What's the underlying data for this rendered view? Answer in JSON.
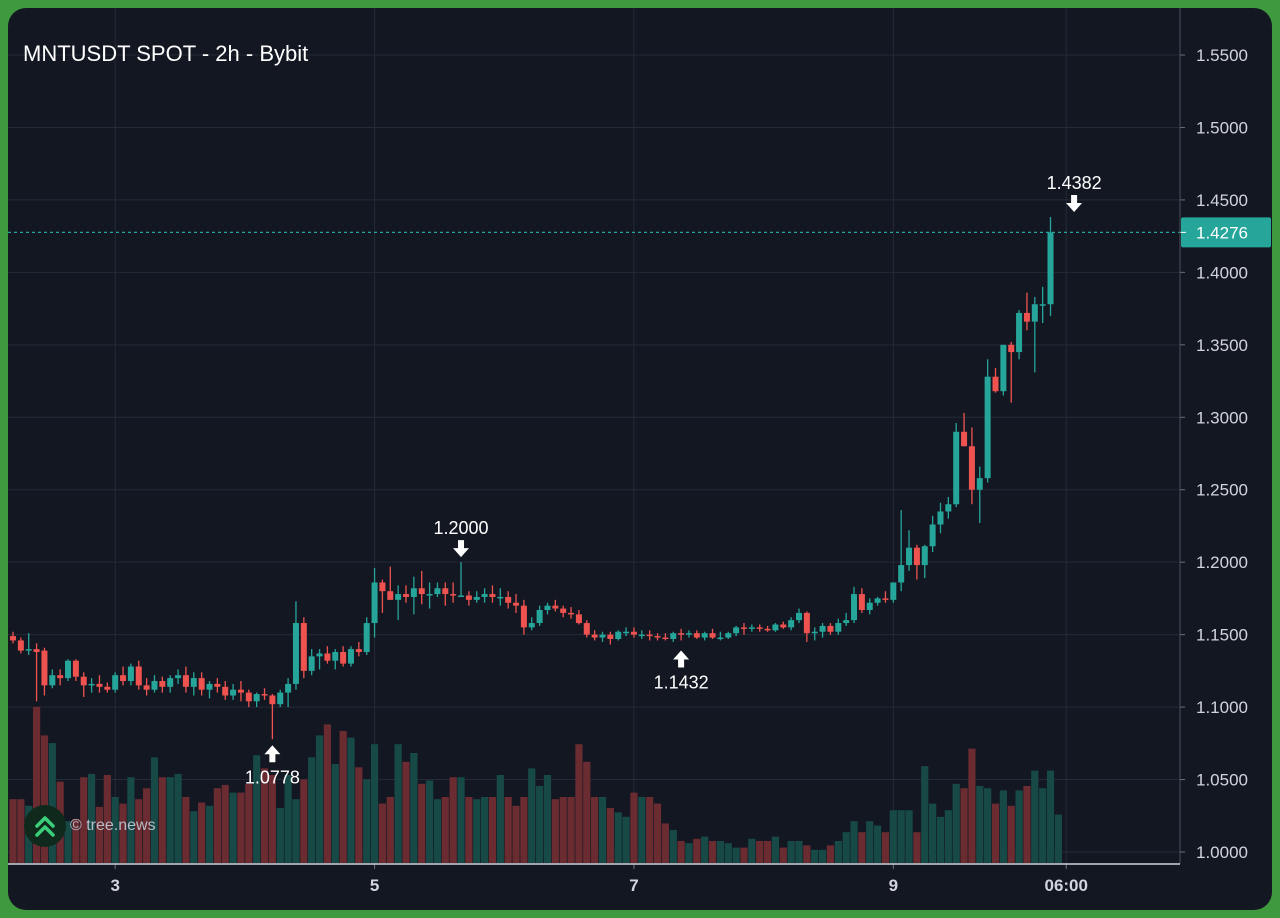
{
  "chart_data": {
    "type": "candlestick",
    "title": "MNTUSDT SPOT - 2h - Bybit",
    "last_price": 1.4276,
    "ylim": [
      0.99,
      1.572
    ],
    "y_ticks": [
      "1.5500",
      "1.5000",
      "1.4500",
      "1.4000",
      "1.3500",
      "1.3000",
      "1.2500",
      "1.2000",
      "1.1500",
      "1.1000",
      "1.0500",
      "1.0000"
    ],
    "x_ticks": [
      "3",
      "5",
      "7",
      "9",
      "06:00"
    ],
    "x_tick_bar_index": [
      13,
      46,
      79,
      112,
      134
    ],
    "annotations": [
      {
        "label": "1.0778",
        "bar": 33,
        "price": 1.0778,
        "type": "low"
      },
      {
        "label": "1.2000",
        "bar": 57,
        "price": 1.2,
        "type": "high"
      },
      {
        "label": "1.1432",
        "bar": 85,
        "price": 1.1432,
        "type": "low"
      },
      {
        "label": "1.4382",
        "bar": 135,
        "price": 1.4382,
        "type": "high"
      }
    ],
    "candles": [
      [
        1.149,
        1.152,
        1.144,
        1.146
      ],
      [
        1.146,
        1.148,
        1.137,
        1.139
      ],
      [
        1.139,
        1.151,
        1.136,
        1.14
      ],
      [
        1.14,
        1.144,
        1.104,
        1.138
      ],
      [
        1.139,
        1.141,
        1.108,
        1.115
      ],
      [
        1.115,
        1.126,
        1.113,
        1.122
      ],
      [
        1.122,
        1.126,
        1.115,
        1.12
      ],
      [
        1.12,
        1.133,
        1.118,
        1.132
      ],
      [
        1.132,
        1.133,
        1.118,
        1.121
      ],
      [
        1.121,
        1.124,
        1.107,
        1.115
      ],
      [
        1.115,
        1.12,
        1.11,
        1.116
      ],
      [
        1.116,
        1.122,
        1.11,
        1.114
      ],
      [
        1.114,
        1.117,
        1.11,
        1.112
      ],
      [
        1.112,
        1.124,
        1.11,
        1.122
      ],
      [
        1.122,
        1.128,
        1.115,
        1.118
      ],
      [
        1.118,
        1.13,
        1.115,
        1.128
      ],
      [
        1.128,
        1.132,
        1.112,
        1.115
      ],
      [
        1.115,
        1.12,
        1.108,
        1.112
      ],
      [
        1.112,
        1.122,
        1.11,
        1.118
      ],
      [
        1.118,
        1.121,
        1.11,
        1.114
      ],
      [
        1.114,
        1.122,
        1.11,
        1.12
      ],
      [
        1.12,
        1.126,
        1.116,
        1.122
      ],
      [
        1.122,
        1.128,
        1.11,
        1.114
      ],
      [
        1.114,
        1.124,
        1.108,
        1.12
      ],
      [
        1.12,
        1.124,
        1.108,
        1.112
      ],
      [
        1.112,
        1.118,
        1.106,
        1.116
      ],
      [
        1.116,
        1.12,
        1.11,
        1.114
      ],
      [
        1.114,
        1.118,
        1.105,
        1.108
      ],
      [
        1.108,
        1.116,
        1.105,
        1.112
      ],
      [
        1.112,
        1.118,
        1.104,
        1.11
      ],
      [
        1.11,
        1.112,
        1.1,
        1.104
      ],
      [
        1.104,
        1.11,
        1.1,
        1.109
      ],
      [
        1.109,
        1.113,
        1.105,
        1.108
      ],
      [
        1.108,
        1.109,
        1.0778,
        1.102
      ],
      [
        1.102,
        1.112,
        1.1,
        1.11
      ],
      [
        1.11,
        1.12,
        1.1,
        1.116
      ],
      [
        1.116,
        1.173,
        1.112,
        1.158
      ],
      [
        1.158,
        1.162,
        1.12,
        1.125
      ],
      [
        1.125,
        1.14,
        1.122,
        1.135
      ],
      [
        1.135,
        1.14,
        1.126,
        1.137
      ],
      [
        1.137,
        1.142,
        1.13,
        1.132
      ],
      [
        1.132,
        1.14,
        1.126,
        1.138
      ],
      [
        1.138,
        1.142,
        1.128,
        1.13
      ],
      [
        1.13,
        1.142,
        1.128,
        1.14
      ],
      [
        1.14,
        1.145,
        1.135,
        1.138
      ],
      [
        1.138,
        1.162,
        1.136,
        1.158
      ],
      [
        1.158,
        1.196,
        1.148,
        1.186
      ],
      [
        1.186,
        1.188,
        1.165,
        1.18
      ],
      [
        1.18,
        1.197,
        1.174,
        1.174
      ],
      [
        1.174,
        1.184,
        1.16,
        1.178
      ],
      [
        1.178,
        1.184,
        1.172,
        1.176
      ],
      [
        1.176,
        1.19,
        1.164,
        1.182
      ],
      [
        1.182,
        1.194,
        1.171,
        1.178
      ],
      [
        1.178,
        1.186,
        1.168,
        1.178
      ],
      [
        1.178,
        1.186,
        1.176,
        1.182
      ],
      [
        1.182,
        1.186,
        1.17,
        1.178
      ],
      [
        1.178,
        1.186,
        1.172,
        1.177
      ],
      [
        1.177,
        1.2,
        1.176,
        1.177
      ],
      [
        1.177,
        1.18,
        1.17,
        1.174
      ],
      [
        1.174,
        1.18,
        1.172,
        1.176
      ],
      [
        1.176,
        1.182,
        1.172,
        1.178
      ],
      [
        1.178,
        1.184,
        1.172,
        1.176
      ],
      [
        1.176,
        1.182,
        1.17,
        1.176
      ],
      [
        1.176,
        1.18,
        1.168,
        1.172
      ],
      [
        1.172,
        1.178,
        1.165,
        1.17
      ],
      [
        1.17,
        1.174,
        1.15,
        1.155
      ],
      [
        1.155,
        1.162,
        1.153,
        1.158
      ],
      [
        1.158,
        1.17,
        1.156,
        1.167
      ],
      [
        1.167,
        1.172,
        1.164,
        1.17
      ],
      [
        1.17,
        1.174,
        1.166,
        1.168
      ],
      [
        1.168,
        1.17,
        1.162,
        1.165
      ],
      [
        1.165,
        1.169,
        1.161,
        1.164
      ],
      [
        1.164,
        1.167,
        1.157,
        1.158
      ],
      [
        1.158,
        1.16,
        1.148,
        1.15
      ],
      [
        1.15,
        1.153,
        1.146,
        1.148
      ],
      [
        1.148,
        1.152,
        1.145,
        1.15
      ],
      [
        1.15,
        1.152,
        1.1432,
        1.147
      ],
      [
        1.147,
        1.153,
        1.146,
        1.152
      ],
      [
        1.152,
        1.155,
        1.149,
        1.152
      ],
      [
        1.152,
        1.155,
        1.148,
        1.15
      ],
      [
        1.15,
        1.153,
        1.147,
        1.15
      ],
      [
        1.15,
        1.153,
        1.146,
        1.149
      ],
      [
        1.149,
        1.151,
        1.146,
        1.148
      ],
      [
        1.148,
        1.151,
        1.146,
        1.147
      ],
      [
        1.147,
        1.152,
        1.145,
        1.151
      ],
      [
        1.151,
        1.154,
        1.146,
        1.15
      ],
      [
        1.15,
        1.153,
        1.148,
        1.151
      ],
      [
        1.151,
        1.153,
        1.147,
        1.148
      ],
      [
        1.148,
        1.152,
        1.146,
        1.151
      ],
      [
        1.151,
        1.154,
        1.147,
        1.148
      ],
      [
        1.148,
        1.152,
        1.146,
        1.148
      ],
      [
        1.148,
        1.152,
        1.147,
        1.151
      ],
      [
        1.151,
        1.156,
        1.149,
        1.155
      ],
      [
        1.155,
        1.158,
        1.15,
        1.154
      ],
      [
        1.154,
        1.157,
        1.152,
        1.155
      ],
      [
        1.155,
        1.157,
        1.152,
        1.154
      ],
      [
        1.154,
        1.156,
        1.152,
        1.153
      ],
      [
        1.153,
        1.158,
        1.152,
        1.157
      ],
      [
        1.157,
        1.159,
        1.154,
        1.155
      ],
      [
        1.155,
        1.162,
        1.153,
        1.16
      ],
      [
        1.16,
        1.168,
        1.158,
        1.165
      ],
      [
        1.165,
        1.166,
        1.145,
        1.151
      ],
      [
        1.151,
        1.155,
        1.146,
        1.152
      ],
      [
        1.152,
        1.158,
        1.148,
        1.156
      ],
      [
        1.156,
        1.158,
        1.15,
        1.152
      ],
      [
        1.152,
        1.161,
        1.15,
        1.158
      ],
      [
        1.158,
        1.165,
        1.156,
        1.16
      ],
      [
        1.16,
        1.183,
        1.158,
        1.178
      ],
      [
        1.178,
        1.182,
        1.165,
        1.167
      ],
      [
        1.167,
        1.175,
        1.164,
        1.172
      ],
      [
        1.172,
        1.176,
        1.17,
        1.175
      ],
      [
        1.175,
        1.18,
        1.172,
        1.174
      ],
      [
        1.174,
        1.185,
        1.172,
        1.186
      ],
      [
        1.186,
        1.236,
        1.18,
        1.198
      ],
      [
        1.198,
        1.222,
        1.194,
        1.21
      ],
      [
        1.21,
        1.212,
        1.188,
        1.198
      ],
      [
        1.198,
        1.212,
        1.189,
        1.211
      ],
      [
        1.211,
        1.232,
        1.207,
        1.226
      ],
      [
        1.226,
        1.241,
        1.22,
        1.235
      ],
      [
        1.235,
        1.245,
        1.23,
        1.24
      ],
      [
        1.24,
        1.296,
        1.238,
        1.29
      ],
      [
        1.29,
        1.303,
        1.28,
        1.28
      ],
      [
        1.28,
        1.293,
        1.24,
        1.25
      ],
      [
        1.25,
        1.266,
        1.227,
        1.258
      ],
      [
        1.258,
        1.34,
        1.255,
        1.328
      ],
      [
        1.328,
        1.334,
        1.317,
        1.318
      ],
      [
        1.318,
        1.35,
        1.315,
        1.35
      ],
      [
        1.35,
        1.352,
        1.31,
        1.345
      ],
      [
        1.345,
        1.374,
        1.34,
        1.372
      ],
      [
        1.372,
        1.386,
        1.36,
        1.366
      ],
      [
        1.366,
        1.383,
        1.331,
        1.378
      ],
      [
        1.378,
        1.39,
        1.365,
        1.378
      ],
      [
        1.378,
        1.4382,
        1.37,
        1.4276
      ]
    ],
    "volume": [
      {
        "bar": 0,
        "value": 0.058
      },
      {
        "bar": 1,
        "value": 0.058
      },
      {
        "bar": 2,
        "value": 0.052
      },
      {
        "bar": 3,
        "value": 0.142
      },
      {
        "bar": 4,
        "value": 0.116
      },
      {
        "bar": 5,
        "value": 0.109
      },
      {
        "bar": 6,
        "value": 0.074
      },
      {
        "bar": 7,
        "value": 0.038
      },
      {
        "bar": 8,
        "value": 0.04
      },
      {
        "bar": 9,
        "value": 0.078
      },
      {
        "bar": 10,
        "value": 0.081
      },
      {
        "bar": 11,
        "value": 0.051
      },
      {
        "bar": 12,
        "value": 0.08
      },
      {
        "bar": 13,
        "value": 0.06
      },
      {
        "bar": 14,
        "value": 0.054
      },
      {
        "bar": 15,
        "value": 0.078
      },
      {
        "bar": 16,
        "value": 0.058
      },
      {
        "bar": 17,
        "value": 0.068
      },
      {
        "bar": 18,
        "value": 0.096
      },
      {
        "bar": 19,
        "value": 0.078
      },
      {
        "bar": 20,
        "value": 0.078
      },
      {
        "bar": 21,
        "value": 0.081
      },
      {
        "bar": 22,
        "value": 0.06
      },
      {
        "bar": 23,
        "value": 0.047
      },
      {
        "bar": 24,
        "value": 0.055
      },
      {
        "bar": 25,
        "value": 0.052
      },
      {
        "bar": 26,
        "value": 0.068
      },
      {
        "bar": 27,
        "value": 0.071
      },
      {
        "bar": 28,
        "value": 0.064
      },
      {
        "bar": 29,
        "value": 0.064
      },
      {
        "bar": 30,
        "value": 0.072
      },
      {
        "bar": 31,
        "value": 0.098
      },
      {
        "bar": 32,
        "value": 0.086
      },
      {
        "bar": 33,
        "value": 0.08
      },
      {
        "bar": 34,
        "value": 0.05
      },
      {
        "bar": 35,
        "value": 0.08
      },
      {
        "bar": 36,
        "value": 0.058
      },
      {
        "bar": 37,
        "value": 0.076
      },
      {
        "bar": 38,
        "value": 0.096
      },
      {
        "bar": 39,
        "value": 0.116
      },
      {
        "bar": 40,
        "value": 0.126
      },
      {
        "bar": 41,
        "value": 0.09
      },
      {
        "bar": 42,
        "value": 0.12
      },
      {
        "bar": 43,
        "value": 0.114
      },
      {
        "bar": 44,
        "value": 0.087
      },
      {
        "bar": 45,
        "value": 0.076
      },
      {
        "bar": 46,
        "value": 0.108
      },
      {
        "bar": 47,
        "value": 0.054
      },
      {
        "bar": 48,
        "value": 0.06
      },
      {
        "bar": 49,
        "value": 0.108
      },
      {
        "bar": 50,
        "value": 0.092
      },
      {
        "bar": 51,
        "value": 0.1
      },
      {
        "bar": 52,
        "value": 0.072
      },
      {
        "bar": 53,
        "value": 0.075
      },
      {
        "bar": 54,
        "value": 0.058
      },
      {
        "bar": 55,
        "value": 0.06
      },
      {
        "bar": 56,
        "value": 0.078
      },
      {
        "bar": 57,
        "value": 0.078
      },
      {
        "bar": 58,
        "value": 0.06
      },
      {
        "bar": 59,
        "value": 0.058
      },
      {
        "bar": 60,
        "value": 0.06
      },
      {
        "bar": 61,
        "value": 0.06
      },
      {
        "bar": 62,
        "value": 0.08
      },
      {
        "bar": 63,
        "value": 0.06
      },
      {
        "bar": 64,
        "value": 0.052
      },
      {
        "bar": 65,
        "value": 0.06
      },
      {
        "bar": 66,
        "value": 0.086
      },
      {
        "bar": 67,
        "value": 0.07
      },
      {
        "bar": 68,
        "value": 0.08
      },
      {
        "bar": 69,
        "value": 0.058
      },
      {
        "bar": 70,
        "value": 0.06
      },
      {
        "bar": 71,
        "value": 0.06
      },
      {
        "bar": 72,
        "value": 0.108
      },
      {
        "bar": 73,
        "value": 0.092
      },
      {
        "bar": 74,
        "value": 0.06
      },
      {
        "bar": 75,
        "value": 0.06
      },
      {
        "bar": 76,
        "value": 0.05
      },
      {
        "bar": 77,
        "value": 0.046
      },
      {
        "bar": 78,
        "value": 0.042
      },
      {
        "bar": 79,
        "value": 0.064
      },
      {
        "bar": 80,
        "value": 0.06
      },
      {
        "bar": 81,
        "value": 0.06
      },
      {
        "bar": 82,
        "value": 0.054
      },
      {
        "bar": 83,
        "value": 0.036
      },
      {
        "bar": 84,
        "value": 0.03
      },
      {
        "bar": 85,
        "value": 0.02
      },
      {
        "bar": 86,
        "value": 0.018
      },
      {
        "bar": 87,
        "value": 0.022
      },
      {
        "bar": 88,
        "value": 0.024
      },
      {
        "bar": 89,
        "value": 0.02
      },
      {
        "bar": 90,
        "value": 0.02
      },
      {
        "bar": 91,
        "value": 0.018
      },
      {
        "bar": 92,
        "value": 0.014
      },
      {
        "bar": 93,
        "value": 0.014
      },
      {
        "bar": 94,
        "value": 0.022
      },
      {
        "bar": 95,
        "value": 0.02
      },
      {
        "bar": 96,
        "value": 0.02
      },
      {
        "bar": 97,
        "value": 0.024
      },
      {
        "bar": 98,
        "value": 0.014
      },
      {
        "bar": 99,
        "value": 0.02
      },
      {
        "bar": 100,
        "value": 0.02
      },
      {
        "bar": 101,
        "value": 0.016
      },
      {
        "bar": 102,
        "value": 0.012
      },
      {
        "bar": 103,
        "value": 0.012
      },
      {
        "bar": 104,
        "value": 0.016
      },
      {
        "bar": 105,
        "value": 0.02
      },
      {
        "bar": 106,
        "value": 0.028
      },
      {
        "bar": 107,
        "value": 0.038
      },
      {
        "bar": 108,
        "value": 0.028
      },
      {
        "bar": 109,
        "value": 0.038
      },
      {
        "bar": 110,
        "value": 0.034
      },
      {
        "bar": 111,
        "value": 0.028
      },
      {
        "bar": 112,
        "value": 0.048
      },
      {
        "bar": 113,
        "value": 0.048
      },
      {
        "bar": 114,
        "value": 0.048
      },
      {
        "bar": 115,
        "value": 0.028
      },
      {
        "bar": 116,
        "value": 0.088
      },
      {
        "bar": 117,
        "value": 0.054
      },
      {
        "bar": 118,
        "value": 0.042
      },
      {
        "bar": 119,
        "value": 0.048
      },
      {
        "bar": 120,
        "value": 0.072
      },
      {
        "bar": 121,
        "value": 0.068
      },
      {
        "bar": 122,
        "value": 0.104
      },
      {
        "bar": 123,
        "value": 0.07
      },
      {
        "bar": 124,
        "value": 0.068
      },
      {
        "bar": 125,
        "value": 0.054
      },
      {
        "bar": 126,
        "value": 0.066
      },
      {
        "bar": 127,
        "value": 0.052
      },
      {
        "bar": 128,
        "value": 0.066
      },
      {
        "bar": 129,
        "value": 0.07
      },
      {
        "bar": 130,
        "value": 0.084
      },
      {
        "bar": 131,
        "value": 0.068
      },
      {
        "bar": 132,
        "value": 0.084
      },
      {
        "bar": 133,
        "value": 0.044
      }
    ],
    "colors": {
      "up": "#26a69a",
      "down": "#ef5350",
      "volume_up": "#174a47",
      "volume_down": "#6a2b31",
      "background": "#131722",
      "grid": "#242a38",
      "axis_text": "#d1d4dc",
      "price_tag": "#26a69a"
    }
  },
  "watermark": {
    "text": "© tree.news",
    "icon": "double-chevron-up-icon"
  }
}
